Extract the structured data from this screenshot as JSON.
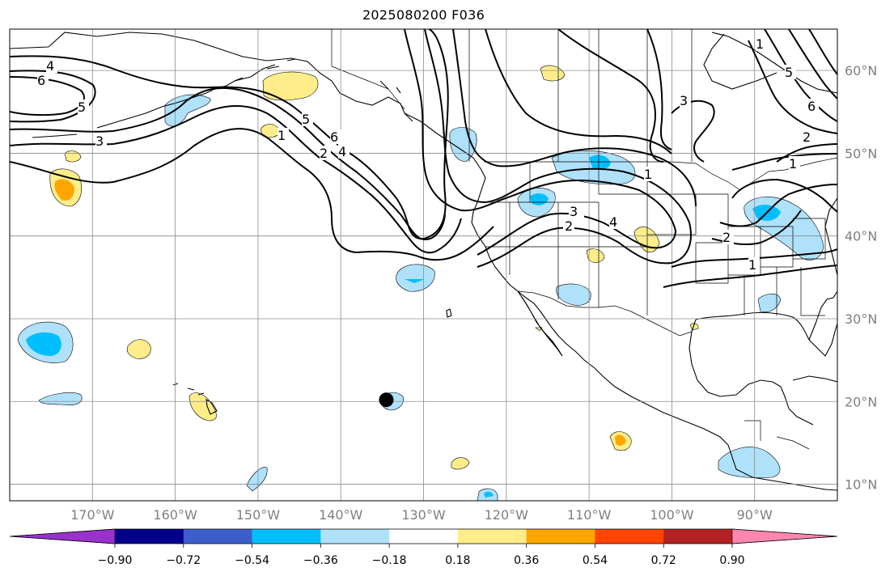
{
  "title": "2025080200 F036",
  "map": {
    "lat_range": [
      8,
      65
    ],
    "lon_range": [
      -180,
      -80
    ],
    "lat_labels": [
      "60°N",
      "50°N",
      "40°N",
      "30°N",
      "20°N",
      "10°N"
    ],
    "lat_values": [
      60,
      50,
      40,
      30,
      20,
      10
    ],
    "lon_labels": [
      "170°W",
      "160°W",
      "150°W",
      "140°W",
      "130°W",
      "120°W",
      "110°W",
      "100°W",
      "90°W"
    ],
    "lon_values": [
      -170,
      -160,
      -150,
      -140,
      -130,
      -120,
      -110,
      -100,
      -90
    ],
    "gridlines": true,
    "contour_labels": [
      "4",
      "6",
      "5",
      "3",
      "1",
      "2",
      "3",
      "5",
      "6",
      "4",
      "1",
      "2",
      "3",
      "4",
      "1",
      "1",
      "5",
      "6",
      "2",
      "3",
      "2",
      "1"
    ],
    "marker": {
      "lon": -134.5,
      "lat": 20.2,
      "shape": "filled-circle"
    }
  },
  "colorbar": {
    "ticks": [
      "−0.90",
      "−0.72",
      "−0.54",
      "−0.36",
      "−0.18",
      "0.18",
      "0.36",
      "0.54",
      "0.72",
      "0.90"
    ],
    "colors": [
      "#9932cc",
      "#00008b",
      "#3a5fcd",
      "#00bfff",
      "#afe1fb",
      "#ffffff",
      "#ffed8a",
      "#ffa500",
      "#ff4500",
      "#b22222",
      "#ff86ad",
      "#ff86ad"
    ],
    "extend": "both"
  },
  "colors": {
    "grid": "#8c8c8c",
    "coast": "#000000",
    "label_gray": "#7f7f7f"
  }
}
